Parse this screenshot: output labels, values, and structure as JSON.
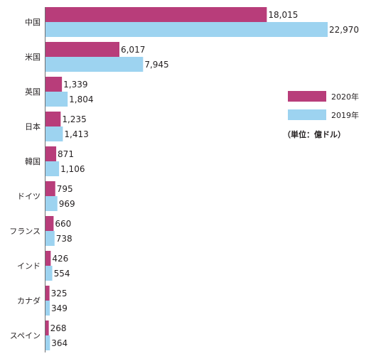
{
  "chart_data": {
    "type": "bar",
    "orientation": "horizontal",
    "categories": [
      "中国",
      "米国",
      "英国",
      "日本",
      "韓国",
      "ドイツ",
      "フランス",
      "インド",
      "カナダ",
      "スペイン"
    ],
    "series": [
      {
        "name": "2020年",
        "color": "#b83d7a",
        "values": [
          18015,
          6017,
          1339,
          1235,
          871,
          795,
          660,
          426,
          325,
          268
        ],
        "labels": [
          "18,015",
          "6,017",
          "1,339",
          "1,235",
          "871",
          "795",
          "660",
          "426",
          "325",
          "268"
        ]
      },
      {
        "name": "2019年",
        "color": "#9dd3f0",
        "values": [
          22970,
          7945,
          1804,
          1413,
          1106,
          969,
          738,
          554,
          349,
          364
        ],
        "labels": [
          "22,970",
          "7,945",
          "1,804",
          "1,413",
          "1,106",
          "969",
          "738",
          "554",
          "349",
          "364"
        ]
      }
    ],
    "unit_note": "（単位：億ドル）",
    "xlim": [
      0,
      25000
    ],
    "grid": false,
    "legend_position": "right"
  }
}
